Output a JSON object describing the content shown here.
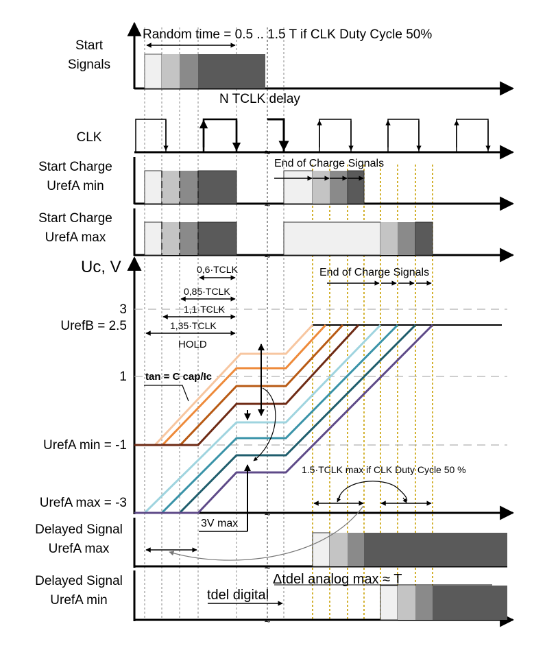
{
  "labels": {
    "start_signals": [
      "Start",
      "Signals"
    ],
    "random_time": "Random time = 0.5 .. 1.5 T if CLK Duty Cycle 50%",
    "n_tclk_delay": "N TCLK delay",
    "clk": "CLK",
    "start_charge_min": [
      "Start Charge",
      "UrefA min"
    ],
    "start_charge_max": [
      "Start Charge",
      "UrefA max"
    ],
    "end_of_charge_1": "End of Charge Signals",
    "end_of_charge_2": "End of Charge Signals",
    "uc_axis": "Uc, V",
    "level_3": "3",
    "urefb": "UrefB = 2.5",
    "level_1": "1",
    "urefa_min": "UrefA min = -1",
    "urefa_max": "UrefA max = -3",
    "t06": "0,6·TCLK",
    "t085": "0,85·TCLK",
    "t11": "1,1·TCLK",
    "t135": "1,35·TCLK",
    "hold": "HOLD",
    "tan": "tan = C cap/Ic",
    "max15": "1.5·TCLK max if CLK Duty Cycle 50 %",
    "v3max": "3V max",
    "delayed_max": [
      "Delayed Signal",
      "UrefA max"
    ],
    "delayed_min": [
      "Delayed Signal",
      "UrefA min"
    ],
    "dtdel": "Δtdel analog max ≈ T",
    "tdel_digital": "tdel digital",
    "break_mark": "≈"
  },
  "colors": {
    "shade_1": "#f0f0f0",
    "shade_2": "#c4c4c4",
    "shade_3": "#8a8a8a",
    "shade_4": "#5a5a5a",
    "ramp_1": "#f7c6a0",
    "ramp_2": "#ee8a3a",
    "ramp_3": "#b85a14",
    "ramp_4": "#6e2a14",
    "ramp_5": "#9fd4df",
    "ramp_6": "#3a93a8",
    "ramp_7": "#1f5d6c",
    "ramp_8": "#5e4a88",
    "yellow_guides": "#c8a000"
  }
}
